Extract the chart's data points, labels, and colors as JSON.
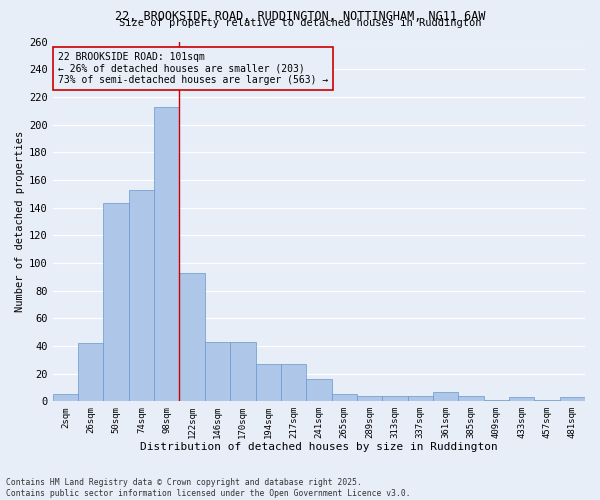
{
  "title_line1": "22, BROOKSIDE ROAD, RUDDINGTON, NOTTINGHAM, NG11 6AW",
  "title_line2": "Size of property relative to detached houses in Ruddington",
  "xlabel": "Distribution of detached houses by size in Ruddington",
  "ylabel": "Number of detached properties",
  "footnote": "Contains HM Land Registry data © Crown copyright and database right 2025.\nContains public sector information licensed under the Open Government Licence v3.0.",
  "categories": [
    "2sqm",
    "26sqm",
    "50sqm",
    "74sqm",
    "98sqm",
    "122sqm",
    "146sqm",
    "170sqm",
    "194sqm",
    "217sqm",
    "241sqm",
    "265sqm",
    "289sqm",
    "313sqm",
    "337sqm",
    "361sqm",
    "385sqm",
    "409sqm",
    "433sqm",
    "457sqm",
    "481sqm"
  ],
  "values": [
    5,
    42,
    143,
    153,
    213,
    93,
    43,
    43,
    27,
    27,
    16,
    5,
    4,
    4,
    4,
    7,
    4,
    1,
    3,
    1,
    3
  ],
  "bar_color": "#aec6e8",
  "bar_edge_color": "#6699cc",
  "bg_color": "#e8eef8",
  "grid_color": "#ffffff",
  "vline_x_index": 4,
  "vline_color": "#cc0000",
  "annotation_text": "22 BROOKSIDE ROAD: 101sqm\n← 26% of detached houses are smaller (203)\n73% of semi-detached houses are larger (563) →",
  "annotation_box_color": "#cc0000",
  "ylim": [
    0,
    260
  ],
  "yticks": [
    0,
    20,
    40,
    60,
    80,
    100,
    120,
    140,
    160,
    180,
    200,
    220,
    240,
    260
  ]
}
